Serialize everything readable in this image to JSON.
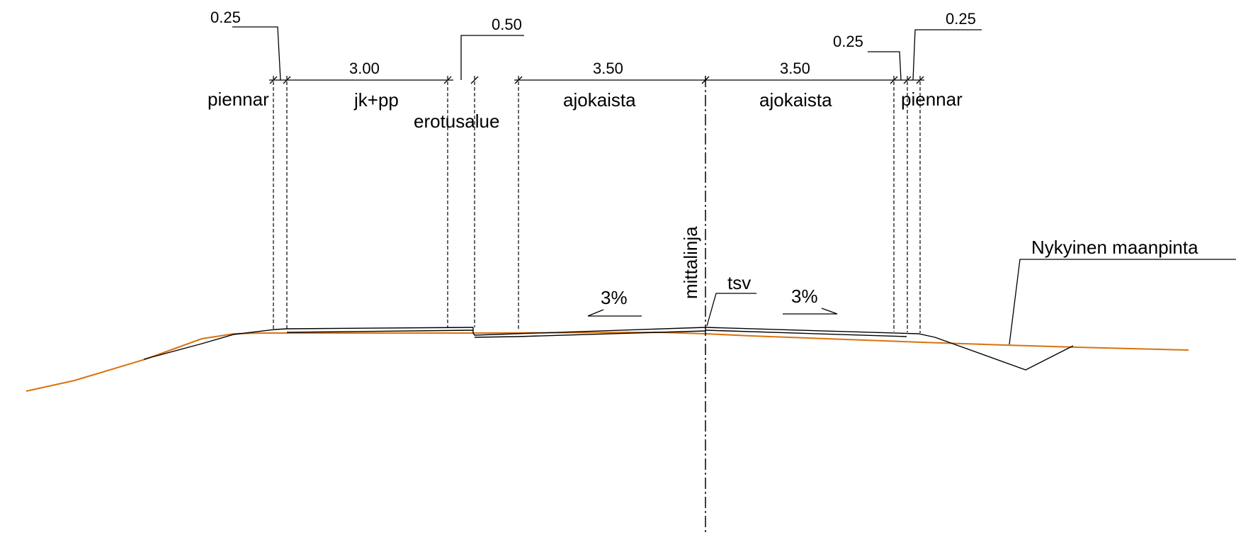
{
  "dimensions": {
    "left_shoulder": "0.25",
    "walkway": "3.00",
    "separator": "0.50",
    "lane_left": "3.50",
    "lane_right": "3.50",
    "right_inner": "0.25",
    "right_shoulder": "0.25"
  },
  "labels": {
    "shoulder_left": "piennar",
    "walkway": "jk+pp",
    "separator": "erotusalue",
    "lane_left": "ajokaista",
    "lane_right": "ajokaista",
    "shoulder_right": "piennar",
    "centerline": "mittalinja",
    "tsv": "tsv",
    "slope_left": "3%",
    "slope_right": "3%",
    "existing_ground": "Nykyinen maanpinta"
  },
  "colors": {
    "ground": "#d9720e",
    "lines": "#000000"
  }
}
